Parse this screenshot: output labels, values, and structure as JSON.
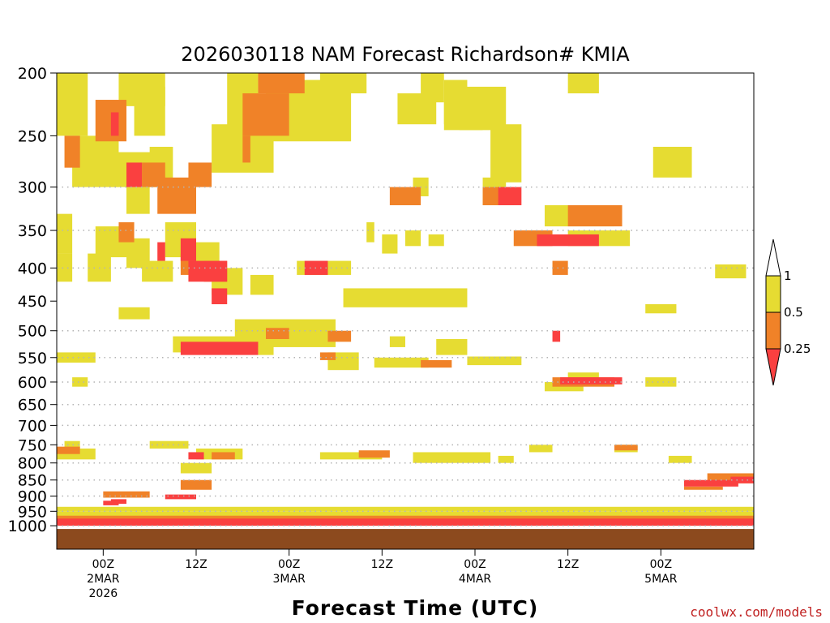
{
  "chart_data": {
    "type": "heatmap",
    "title": "2026030118 NAM Forecast Richardson# KMIA",
    "xlabel": "Forecast Time (UTC)",
    "ylabel": "",
    "credit": "coolwx.com/models",
    "x_range_hours": [
      -6,
      84
    ],
    "x_ticks": [
      {
        "hour": 0,
        "lines": [
          "00Z",
          "2MAR",
          "2026"
        ]
      },
      {
        "hour": 12,
        "lines": [
          "12Z"
        ]
      },
      {
        "hour": 24,
        "lines": [
          "00Z",
          "3MAR"
        ]
      },
      {
        "hour": 36,
        "lines": [
          "12Z"
        ]
      },
      {
        "hour": 48,
        "lines": [
          "00Z",
          "4MAR"
        ]
      },
      {
        "hour": 60,
        "lines": [
          "12Z"
        ]
      },
      {
        "hour": 72,
        "lines": [
          "00Z",
          "5MAR"
        ]
      }
    ],
    "y_axis": {
      "scale": "log-pressure",
      "range_hPa": [
        1050,
        200
      ],
      "reversed": true
    },
    "y_ticks": [
      "200",
      "250",
      "300",
      "350",
      "400",
      "450",
      "500",
      "550",
      "600",
      "650",
      "700",
      "750",
      "800",
      "850",
      "900",
      "950",
      "1000"
    ],
    "gridlines_hPa": [
      300,
      350,
      400,
      500,
      550,
      600,
      650,
      700,
      750,
      800,
      850,
      900,
      950,
      1000
    ],
    "colors": {
      "1": "#e6dc32",
      "0.5": "#f08228",
      "0.25": "#fa4040",
      "ground": "#8c4a1e",
      "grid": "#b4b4b4"
    },
    "legend": {
      "placement": "right",
      "bins": [
        {
          "label": "1",
          "color": "#ffffff"
        },
        {
          "label": "0.5",
          "color": "#e6dc32"
        },
        {
          "label": "0.25",
          "color": "#f08228"
        },
        {
          "label": "",
          "color": "#fa4040"
        }
      ]
    },
    "cells": [
      [
        -2,
        -6,
        200,
        250,
        1
      ],
      [
        2,
        -4,
        250,
        300,
        1
      ],
      [
        2,
        8,
        200,
        225,
        1
      ],
      [
        16,
        20,
        200,
        260,
        1
      ],
      [
        28,
        34,
        200,
        215,
        1
      ],
      [
        41,
        44,
        200,
        222,
        1
      ],
      [
        44,
        47,
        205,
        240,
        1
      ],
      [
        44,
        49,
        222,
        245,
        1
      ],
      [
        38,
        43,
        215,
        240,
        1
      ],
      [
        21,
        32,
        205,
        255,
        1
      ],
      [
        14,
        22,
        240,
        285,
        1
      ],
      [
        1,
        8,
        265,
        300,
        1
      ],
      [
        3,
        6,
        300,
        330,
        1
      ],
      [
        -4,
        -6,
        330,
        380,
        1
      ],
      [
        -1,
        3,
        345,
        385,
        1
      ],
      [
        3,
        6,
        360,
        400,
        1
      ],
      [
        5,
        9,
        390,
        420,
        1
      ],
      [
        8,
        12,
        340,
        385,
        1
      ],
      [
        10,
        15,
        365,
        400,
        1
      ],
      [
        -2,
        1,
        380,
        420,
        1
      ],
      [
        14,
        18,
        400,
        440,
        1
      ],
      [
        25,
        32,
        390,
        410,
        1
      ],
      [
        19,
        22,
        410,
        440,
        1
      ],
      [
        31,
        47,
        430,
        460,
        1
      ],
      [
        22,
        25,
        490,
        510,
        1
      ],
      [
        17,
        30,
        480,
        530,
        1
      ],
      [
        9,
        18,
        510,
        540,
        1
      ],
      [
        29,
        33,
        540,
        575,
        1
      ],
      [
        35,
        42,
        550,
        570,
        1
      ],
      [
        47,
        54,
        548,
        565,
        1
      ],
      [
        43,
        47,
        515,
        545,
        1
      ],
      [
        37,
        39,
        510,
        530,
        1
      ],
      [
        34,
        35,
        340,
        365,
        1
      ],
      [
        36,
        38,
        355,
        380,
        1
      ],
      [
        42,
        44,
        355,
        370,
        1
      ],
      [
        39,
        41,
        350,
        370,
        1
      ],
      [
        60,
        68,
        350,
        370,
        1
      ],
      [
        57,
        66,
        320,
        345,
        1
      ],
      [
        49,
        52,
        290,
        320,
        1
      ],
      [
        40,
        42,
        290,
        310,
        1
      ],
      [
        60,
        64,
        200,
        215,
        1
      ],
      [
        46,
        52,
        210,
        245,
        1
      ],
      [
        50,
        54,
        240,
        295,
        1
      ],
      [
        71,
        76,
        260,
        290,
        1
      ],
      [
        -4,
        -2,
        590,
        610,
        1
      ],
      [
        57,
        62,
        600,
        620,
        1
      ],
      [
        70,
        74,
        590,
        610,
        1
      ],
      [
        60,
        64,
        580,
        600,
        1
      ],
      [
        70,
        74,
        455,
        470,
        1
      ],
      [
        79,
        83,
        395,
        415,
        1
      ],
      [
        12,
        18,
        760,
        790,
        1
      ],
      [
        28,
        36,
        770,
        790,
        1
      ],
      [
        40,
        50,
        770,
        800,
        1
      ],
      [
        -6,
        -1,
        760,
        790,
        1
      ],
      [
        -5,
        -3,
        740,
        760,
        1
      ],
      [
        10,
        14,
        800,
        830,
        1
      ],
      [
        51,
        53,
        780,
        800,
        1
      ],
      [
        55,
        58,
        750,
        770,
        1
      ],
      [
        66,
        69,
        750,
        770,
        1
      ],
      [
        73,
        76,
        780,
        800,
        1
      ],
      [
        6,
        11,
        740,
        760,
        1
      ],
      [
        -6,
        -1,
        540,
        560,
        1
      ],
      [
        20,
        22,
        520,
        545,
        1
      ],
      [
        24,
        28,
        500,
        515,
        1
      ],
      [
        2,
        6,
        460,
        480,
        1
      ],
      [
        -6,
        -4,
        380,
        420,
        1
      ],
      [
        6,
        9,
        260,
        300,
        1
      ],
      [
        4,
        8,
        210,
        250,
        1
      ],
      [
        -1,
        3,
        220,
        255,
        0.5
      ],
      [
        5,
        8,
        275,
        300,
        0.5
      ],
      [
        7,
        12,
        290,
        330,
        0.5
      ],
      [
        11,
        14,
        275,
        300,
        0.5
      ],
      [
        18,
        24,
        215,
        250,
        0.5
      ],
      [
        20,
        26,
        200,
        215,
        0.5
      ],
      [
        10,
        12,
        380,
        410,
        0.5
      ],
      [
        13,
        16,
        390,
        420,
        0.5
      ],
      [
        -5,
        -3,
        250,
        280,
        0.5
      ],
      [
        37,
        41,
        300,
        320,
        0.5
      ],
      [
        49,
        53,
        300,
        320,
        0.5
      ],
      [
        60,
        67,
        320,
        345,
        0.5
      ],
      [
        53,
        58,
        350,
        370,
        0.5
      ],
      [
        58,
        60,
        390,
        410,
        0.5
      ],
      [
        41,
        45,
        555,
        570,
        0.5
      ],
      [
        58,
        66,
        590,
        610,
        0.5
      ],
      [
        21,
        24,
        495,
        515,
        0.5
      ],
      [
        29,
        32,
        500,
        520,
        0.5
      ],
      [
        14,
        17,
        770,
        790,
        0.5
      ],
      [
        33,
        37,
        765,
        785,
        0.5
      ],
      [
        -6,
        -3,
        755,
        775,
        0.5
      ],
      [
        66,
        69,
        750,
        765,
        0.5
      ],
      [
        28,
        30,
        540,
        555,
        0.5
      ],
      [
        2,
        4,
        340,
        365,
        0.5
      ],
      [
        18,
        19,
        250,
        275,
        0.5
      ],
      [
        10,
        14,
        850,
        880,
        0.5
      ],
      [
        0,
        6,
        885,
        905,
        0.5
      ],
      [
        78,
        84,
        830,
        860,
        0.5
      ],
      [
        75,
        80,
        870,
        880,
        0.5
      ],
      [
        11,
        16,
        390,
        420,
        0.25
      ],
      [
        14,
        16,
        430,
        455,
        0.25
      ],
      [
        10,
        20,
        520,
        545,
        0.25
      ],
      [
        26,
        29,
        390,
        410,
        0.25
      ],
      [
        51,
        54,
        300,
        320,
        0.25
      ],
      [
        56,
        64,
        355,
        370,
        0.25
      ],
      [
        59,
        67,
        590,
        605,
        0.25
      ],
      [
        58,
        59,
        500,
        520,
        0.25
      ],
      [
        3,
        5,
        275,
        300,
        0.25
      ],
      [
        10,
        12,
        360,
        390,
        0.25
      ],
      [
        11,
        13,
        770,
        790,
        0.25
      ],
      [
        75,
        82,
        850,
        870,
        0.25
      ],
      [
        1,
        3,
        910,
        925,
        0.25
      ],
      [
        8,
        12,
        895,
        910,
        0.25
      ],
      [
        0,
        2,
        915,
        930,
        0.25
      ],
      [
        81,
        84,
        840,
        860,
        0.25
      ],
      [
        1,
        2,
        230,
        250,
        0.25
      ],
      [
        7,
        8,
        365,
        390,
        0.25
      ],
      [
        -6,
        84,
        960,
        1000,
        0.5
      ],
      [
        -6,
        84,
        975,
        1000,
        0.25
      ],
      [
        -6,
        84,
        950,
        965,
        1
      ],
      [
        -6,
        84,
        935,
        950,
        1
      ]
    ]
  }
}
